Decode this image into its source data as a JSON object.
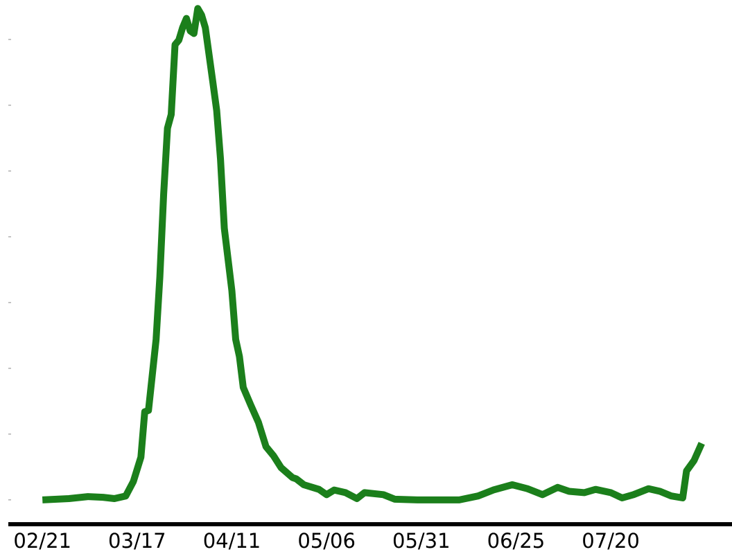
{
  "chart_data": {
    "type": "line",
    "x": [
      "02/21",
      "02/28",
      "03/04",
      "03/08",
      "03/11",
      "03/14",
      "03/16",
      "03/18",
      "03/19",
      "03/20",
      "03/22",
      "03/23",
      "03/24",
      "03/25",
      "03/26",
      "03/27",
      "03/28",
      "03/29",
      "03/30",
      "03/31",
      "04/01",
      "04/02",
      "04/03",
      "04/04",
      "04/06",
      "04/07",
      "04/08",
      "04/09",
      "04/11",
      "04/12",
      "04/13",
      "04/14",
      "04/16",
      "04/18",
      "04/20",
      "04/22",
      "04/24",
      "04/27",
      "04/28",
      "04/30",
      "05/04",
      "05/06",
      "05/08",
      "05/11",
      "05/14",
      "05/16",
      "05/21",
      "05/24",
      "05/30",
      "06/10",
      "06/15",
      "06/19",
      "06/24",
      "06/28",
      "07/02",
      "07/06",
      "07/09",
      "07/13",
      "07/16",
      "07/20",
      "07/23",
      "07/26",
      "07/30",
      "08/02",
      "08/05",
      "08/08",
      "08/09",
      "08/11",
      "08/13"
    ],
    "series": [
      {
        "color": "#1b7f1b",
        "values": [
          0,
          2,
          5,
          4,
          2,
          6,
          28,
          65,
          134,
          136,
          244,
          339,
          465,
          565,
          586,
          692,
          699,
          718,
          732,
          713,
          709,
          747,
          737,
          718,
          634,
          592,
          518,
          413,
          318,
          244,
          218,
          171,
          144,
          118,
          81,
          67,
          49,
          34,
          32,
          23,
          16,
          8,
          15,
          11,
          2,
          11,
          8,
          1,
          0,
          0,
          6,
          15,
          23,
          17,
          8,
          19,
          13,
          11,
          16,
          11,
          3,
          8,
          17,
          13,
          6,
          3,
          44,
          60,
          86
        ]
      }
    ],
    "xlim": [
      "02/12",
      "08/21"
    ],
    "xticks": [
      "02/21",
      "03/17",
      "04/11",
      "05/06",
      "05/31",
      "06/25",
      "07/20"
    ],
    "ylim": [
      -37,
      760
    ],
    "yticks": [
      0,
      100,
      200,
      300,
      400,
      500,
      600,
      700
    ]
  }
}
